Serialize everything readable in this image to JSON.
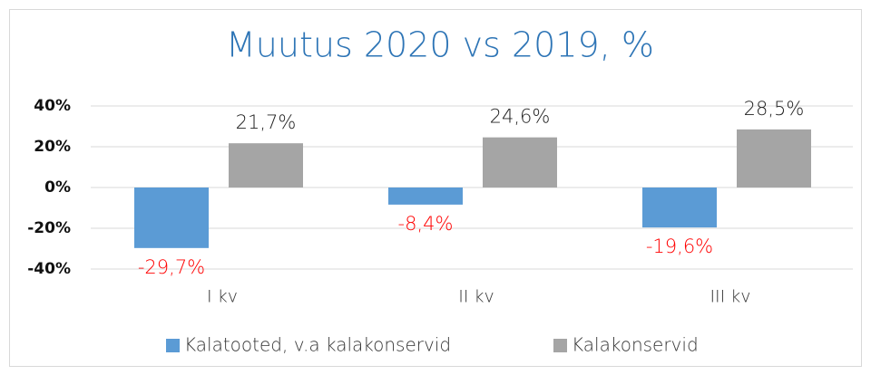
{
  "chart_data": {
    "type": "bar",
    "title": "Muutus 2020 vs 2019, %",
    "categories": [
      "I kv",
      "II kv",
      "III kv"
    ],
    "series": [
      {
        "name": "Kalatooted, v.a kalakonservid",
        "color": "#5b9bd5",
        "label_color": "#ff0000",
        "values": [
          -29.7,
          -8.4,
          -19.6
        ],
        "value_labels": [
          "-29,7%",
          "-8,4%",
          "-19,6%"
        ]
      },
      {
        "name": "Kalakonservid",
        "color": "#a5a5a5",
        "label_color": "#222222",
        "values": [
          21.7,
          24.6,
          28.5
        ],
        "value_labels": [
          "21,7%",
          "24,6%",
          "28,5%"
        ]
      }
    ],
    "ylim": [
      -40,
      40
    ],
    "yticks": [
      {
        "value": -40,
        "label": "-40%"
      },
      {
        "value": -20,
        "label": "-20%"
      },
      {
        "value": 0,
        "label": "0%"
      },
      {
        "value": 20,
        "label": "20%"
      },
      {
        "value": 40,
        "label": "40%"
      }
    ],
    "grid": true,
    "legend": "bottom"
  }
}
